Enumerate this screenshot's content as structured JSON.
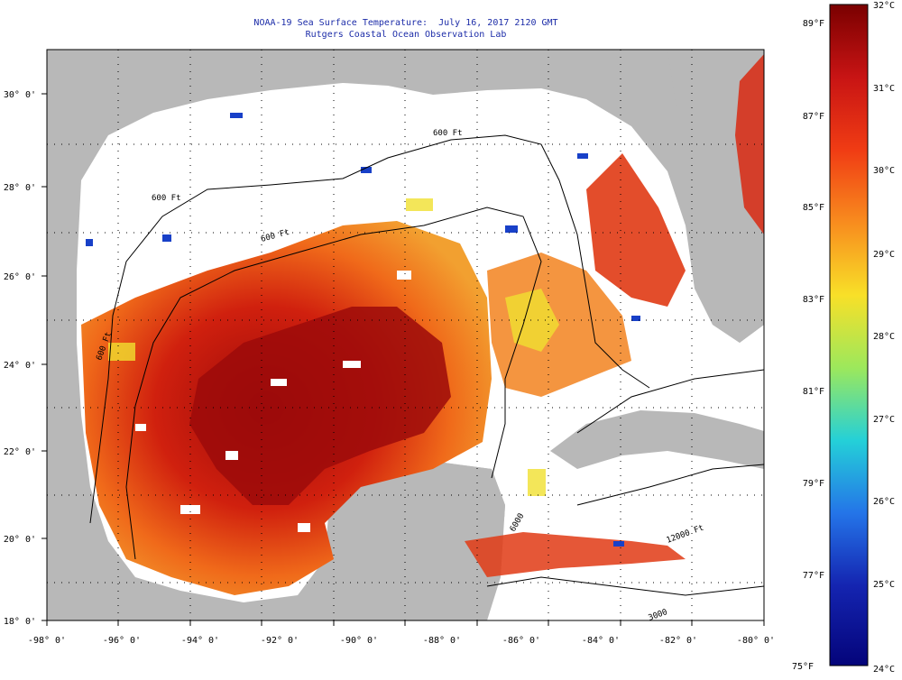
{
  "title": "NOAA-19 Sea Surface Temperature:  July 16, 2017 2120 GMT",
  "subtitle": "Rutgers Coastal Ocean Observation Lab",
  "map": {
    "lon_ticks": [
      "-98° 0'",
      "-96° 0'",
      "-94° 0'",
      "-92° 0'",
      "-90° 0'",
      "-88° 0'",
      "-86° 0'",
      "-84° 0'",
      "-82° 0'",
      "-80° 0'"
    ],
    "lat_ticks": [
      "30° 0'",
      "28° 0'",
      "26° 0'",
      "24° 0'",
      "22° 0'",
      "20° 0'",
      "18° 0'"
    ],
    "contour_labels": [
      "600 Ft",
      "600 Ft",
      "600 Ft",
      "600 Ft",
      "12000 Ft",
      "6000",
      "3000"
    ],
    "colors": {
      "land": "#b8b8b8",
      "cloud": "#ffffff",
      "hot": "#9c0a0a",
      "warm": "#e03a14",
      "mild": "#f2821e",
      "cool": "#f0e030",
      "cold": "#1840c8"
    }
  },
  "colorbar": {
    "top_c": "32°C",
    "bottom_f": "75°F",
    "bottom_c": "24°C",
    "f_labels": [
      "89°F",
      "87°F",
      "85°F",
      "83°F",
      "81°F",
      "79°F",
      "77°F"
    ],
    "c_labels": [
      "31°C",
      "30°C",
      "29°C",
      "28°C",
      "27°C",
      "26°C",
      "25°C"
    ],
    "gradient": [
      "#7a0000",
      "#c81414",
      "#f03c14",
      "#f88c1e",
      "#f8e028",
      "#9ce85c",
      "#24d0d8",
      "#2474e8",
      "#1424b0",
      "#04047a"
    ]
  }
}
